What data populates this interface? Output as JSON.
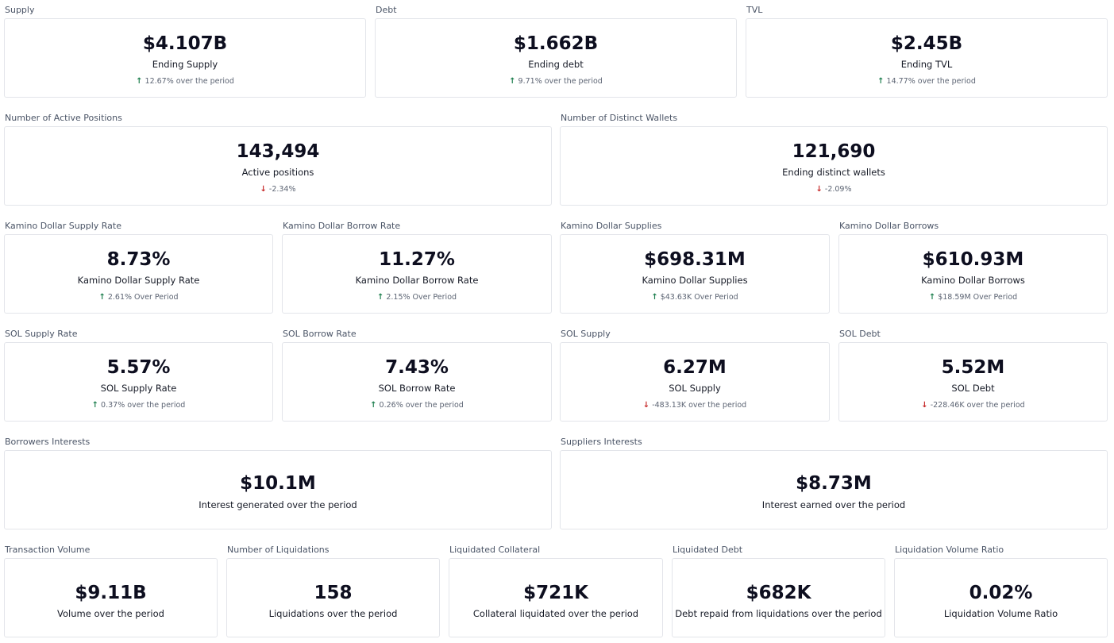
{
  "row1": [
    {
      "title": "Supply",
      "value": "$4.107B",
      "label": "Ending Supply",
      "dir": "up",
      "delta": "12.67% over the period"
    },
    {
      "title": "Debt",
      "value": "$1.662B",
      "label": "Ending debt",
      "dir": "up",
      "delta": "9.71% over the period"
    },
    {
      "title": "TVL",
      "value": "$2.45B",
      "label": "Ending TVL",
      "dir": "up",
      "delta": "14.77% over the period"
    }
  ],
  "row2": [
    {
      "title": "Number of Active Positions",
      "value": "143,494",
      "label": "Active positions",
      "dir": "down",
      "delta": "-2.34%"
    },
    {
      "title": "Number of Distinct Wallets",
      "value": "121,690",
      "label": "Ending distinct wallets",
      "dir": "down",
      "delta": "-2.09%"
    }
  ],
  "row3": [
    {
      "title": "Kamino Dollar Supply Rate",
      "value": "8.73%",
      "label": "Kamino Dollar Supply Rate",
      "dir": "up",
      "delta": "2.61% Over Period"
    },
    {
      "title": "Kamino Dollar Borrow Rate",
      "value": "11.27%",
      "label": "Kamino Dollar Borrow Rate",
      "dir": "up",
      "delta": "2.15% Over Period"
    },
    {
      "title": "Kamino Dollar Supplies",
      "value": "$698.31M",
      "label": "Kamino Dollar Supplies",
      "dir": "up",
      "delta": "$43.63K Over Period"
    },
    {
      "title": "Kamino Dollar Borrows",
      "value": "$610.93M",
      "label": "Kamino Dollar Borrows",
      "dir": "up",
      "delta": "$18.59M Over Period"
    }
  ],
  "row4": [
    {
      "title": "SOL Supply Rate",
      "value": "5.57%",
      "label": "SOL Supply Rate",
      "dir": "up",
      "delta": "0.37% over the period"
    },
    {
      "title": "SOL Borrow Rate",
      "value": "7.43%",
      "label": "SOL Borrow Rate",
      "dir": "up",
      "delta": "0.26% over the period"
    },
    {
      "title": "SOL Supply",
      "value": "6.27M",
      "label": "SOL Supply",
      "dir": "down",
      "delta": "-483.13K over the period"
    },
    {
      "title": "SOL Debt",
      "value": "5.52M",
      "label": "SOL Debt",
      "dir": "down",
      "delta": "-228.46K over the period"
    }
  ],
  "row5": [
    {
      "title": "Borrowers Interests",
      "value": "$10.1M",
      "label": "Interest generated over the period"
    },
    {
      "title": "Suppliers Interests",
      "value": "$8.73M",
      "label": "Interest earned over the period"
    }
  ],
  "row6": [
    {
      "title": "Transaction Volume",
      "value": "$9.11B",
      "label": "Volume over the period"
    },
    {
      "title": "Number of Liquidations",
      "value": "158",
      "label": "Liquidations over the period"
    },
    {
      "title": "Liquidated Collateral",
      "value": "$721K",
      "label": "Collateral liquidated over the period"
    },
    {
      "title": "Liquidated Debt",
      "value": "$682K",
      "label": "Debt repaid from liquidations over the period"
    },
    {
      "title": "Liquidation Volume Ratio",
      "value": "0.02%",
      "label": "Liquidation Volume Ratio"
    }
  ],
  "icons": {
    "up": "arrow-up-icon",
    "down": "arrow-down-icon"
  },
  "colors": {
    "up": "#1e7f4f",
    "down": "#c62828",
    "border": "#e3e5ea",
    "title": "#4a5466"
  }
}
